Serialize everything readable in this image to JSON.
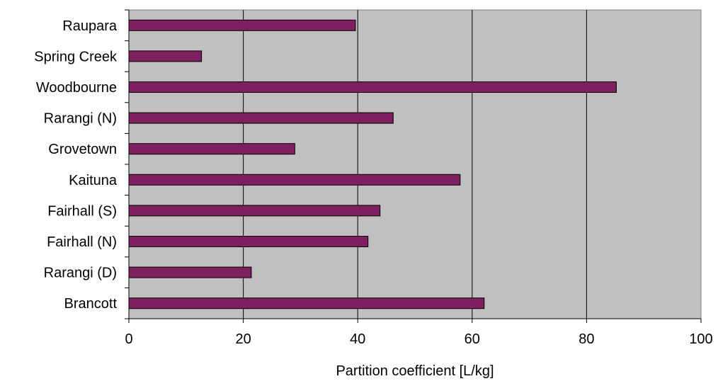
{
  "chart_data": {
    "type": "bar",
    "orientation": "horizontal",
    "categories": [
      "Raupara",
      "Spring Creek",
      "Woodbourne",
      "Rarangi (N)",
      "Grovetown",
      "Kaituna",
      "Fairhall (S)",
      "Fairhall (N)",
      "Rarangi (D)",
      "Brancott"
    ],
    "values": [
      39.6,
      12.7,
      85.2,
      46.2,
      29.0,
      57.9,
      43.9,
      41.8,
      21.4,
      62.1
    ],
    "title": "",
    "xlabel": "Partition coefficient [L/kg]",
    "ylabel": "",
    "xlim": [
      0,
      100
    ],
    "xticks": [
      "0",
      "20",
      "40",
      "60",
      "80",
      "100"
    ],
    "grid": "vertical",
    "legend": "none",
    "colors": {
      "bar_fill": "#7f1f5f",
      "bar_stroke": "#000000",
      "plot_background": "#c0c0c0",
      "gridline": "#000000"
    }
  }
}
